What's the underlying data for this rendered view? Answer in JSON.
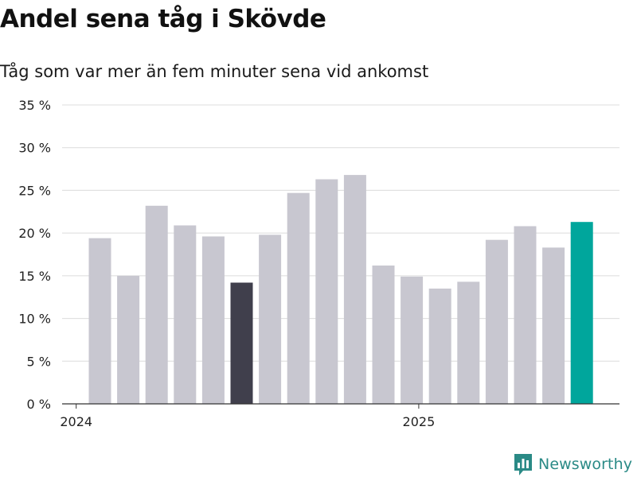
{
  "title": "Andel sena tåg i Skövde",
  "subtitle": "Tåg som var mer än fem minuter sena vid ankomst",
  "brand": {
    "name": "Newsworthy",
    "icon": "newsworthy-logo-icon",
    "color": "#2a8a86"
  },
  "chart_data": {
    "type": "bar",
    "title": "Andel sena tåg i Skövde",
    "subtitle": "Tåg som var mer än fem minuter sena vid ankomst",
    "ylim": [
      0,
      35
    ],
    "yticks": [
      0,
      5,
      10,
      15,
      20,
      25,
      30,
      35
    ],
    "ytick_labels": [
      "0 %",
      "5 %",
      "10 %",
      "15 %",
      "20 %",
      "25 %",
      "30 %",
      "35 %"
    ],
    "xtick_labels": [
      "2024",
      "2025"
    ],
    "grid": true,
    "categories": [
      "2024-01",
      "2024-02",
      "2024-03",
      "2024-04",
      "2024-05",
      "2024-06",
      "2024-07",
      "2024-08",
      "2024-09",
      "2024-10",
      "2024-11",
      "2024-12",
      "2025-01",
      "2025-02",
      "2025-03",
      "2025-04",
      "2025-05",
      "2025-06"
    ],
    "values": [
      19.4,
      15.0,
      23.2,
      20.9,
      19.6,
      14.2,
      19.8,
      24.7,
      26.3,
      26.8,
      16.2,
      14.9,
      13.5,
      14.3,
      19.2,
      20.8,
      18.3,
      21.3
    ],
    "colors": {
      "default": "#c8c7d0",
      "highlight_dark": "#403f4c",
      "highlight_accent": "#00a69c"
    },
    "highlight_dark_index": 5,
    "highlight_accent_index": 17
  }
}
